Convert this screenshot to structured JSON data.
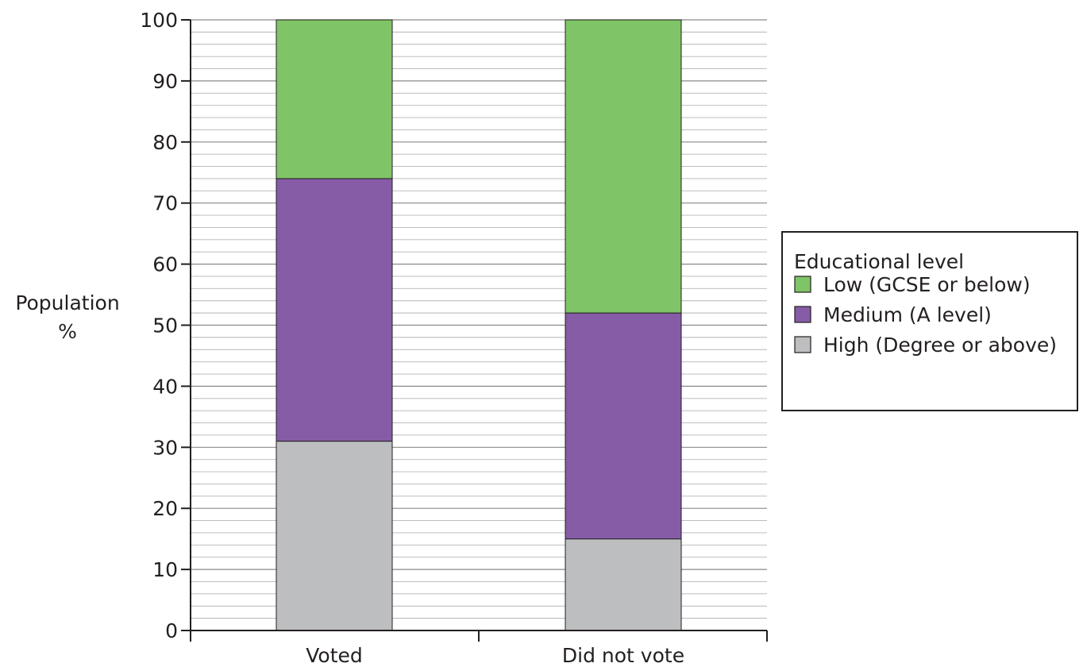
{
  "chart_data": {
    "type": "bar",
    "stacked": true,
    "categories": [
      "Voted",
      "Did not vote"
    ],
    "series": [
      {
        "name": "High (Degree or above)",
        "values": [
          31,
          15
        ],
        "color": "#bcbec0"
      },
      {
        "name": "Medium (A level)",
        "values": [
          43,
          37
        ],
        "color": "#865ca6"
      },
      {
        "name": "Low (GCSE or below)",
        "values": [
          26,
          48
        ],
        "color": "#7fc466"
      }
    ],
    "title": "",
    "xlabel": "",
    "ylabel": [
      "Population",
      "%"
    ],
    "ylim": [
      0,
      100
    ],
    "yticks": [
      0,
      10,
      20,
      30,
      40,
      50,
      60,
      70,
      80,
      90,
      100
    ],
    "minor_gridline_step": 2,
    "grid": true,
    "legend": {
      "title": "Educational level",
      "placement": "right",
      "order": [
        "Low (GCSE or below)",
        "Medium (A level)",
        "High (Degree or above)"
      ]
    }
  }
}
